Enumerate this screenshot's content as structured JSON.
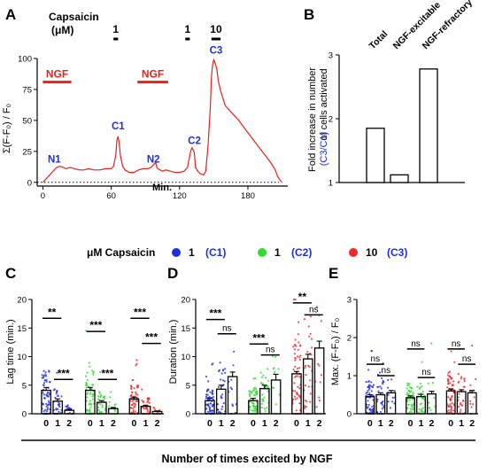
{
  "colors": {
    "trace": "#e8211c",
    "blue": "#1f2ee0",
    "green": "#2fdc2f",
    "red": "#ec2a2a",
    "black": "#000000"
  },
  "chart_data": [
    {
      "panel": "A",
      "type": "line",
      "ylabel": "Σ(F-F₀) / F₀",
      "xlabel": "Min.",
      "xlim": [
        -5,
        215
      ],
      "ylim": [
        -3,
        100
      ],
      "xticks": [
        0,
        60,
        120,
        180
      ],
      "yticks": [
        0,
        25,
        50,
        75,
        100
      ],
      "stim_title_1": "Capsaicin",
      "stim_title_2": "(μM)",
      "stim_pulses": [
        {
          "label": "1",
          "x0": 62,
          "x1": 66
        },
        {
          "label": "1",
          "x0": 125,
          "x1": 129
        },
        {
          "label": "10",
          "x0": 148,
          "x1": 156
        }
      ],
      "ngf_bars": [
        {
          "label": "NGF",
          "x0": 0,
          "x1": 25
        },
        {
          "label": "NGF",
          "x0": 83,
          "x1": 110
        }
      ],
      "annotations": [
        {
          "label": "N1",
          "x": 10,
          "y": 13
        },
        {
          "label": "C1",
          "x": 66,
          "y": 40
        },
        {
          "label": "N2",
          "x": 97,
          "y": 13
        },
        {
          "label": "C2",
          "x": 133,
          "y": 28
        },
        {
          "label": "C3",
          "x": 152,
          "y": 101
        }
      ],
      "series": [
        {
          "x": [
            0,
            2,
            5,
            8,
            10,
            12,
            15,
            18,
            20,
            24,
            28,
            32,
            36,
            40,
            45,
            50,
            55,
            60,
            62,
            64,
            65,
            66,
            67,
            68,
            70,
            72,
            74,
            76,
            78,
            80,
            82,
            84,
            88,
            92,
            95,
            97,
            99,
            100,
            101,
            103,
            105,
            108,
            112,
            116,
            120,
            124,
            127,
            129,
            130,
            131,
            133,
            134,
            136,
            138,
            141,
            143,
            145,
            147,
            148,
            149,
            150,
            151,
            152,
            153,
            154,
            156,
            158,
            160,
            164,
            168,
            172,
            176,
            180,
            185,
            190,
            195,
            200,
            204,
            206,
            208,
            210
          ],
          "y": [
            0,
            2,
            5,
            8,
            10,
            12,
            13,
            12,
            11,
            12,
            11,
            10,
            10,
            11,
            10,
            10,
            11,
            11,
            13,
            22,
            34,
            37,
            32,
            22,
            13,
            10,
            9,
            8,
            8,
            8,
            9,
            10,
            11,
            11,
            12,
            14,
            16,
            12,
            11,
            10,
            9,
            10,
            9,
            8,
            8,
            9,
            12,
            22,
            26,
            28,
            24,
            12,
            9,
            7,
            6,
            9,
            30,
            60,
            85,
            95,
            99,
            97,
            94,
            90,
            82,
            74,
            68,
            62,
            58,
            54,
            50,
            45,
            40,
            34,
            28,
            22,
            16,
            10,
            5,
            2,
            0
          ]
        }
      ]
    },
    {
      "panel": "B",
      "type": "bar",
      "ylabel_1": "Fold increase in number",
      "ylabel_2": "of cells activated",
      "ylabel_3": "(C3/C1)",
      "categories": [
        "Total",
        "NGF-excitable",
        "NGF-refractory"
      ],
      "values": [
        1.85,
        1.12,
        2.78
      ],
      "ylim": [
        1,
        3
      ],
      "yticks": [
        1,
        2,
        3
      ]
    },
    {
      "legend_title": "μM Capsaicin",
      "legend": [
        {
          "dose": "1",
          "name": "(C1)",
          "color": "#1f2ee0"
        },
        {
          "dose": "1",
          "name": "(C2)",
          "color": "#2fdc2f"
        },
        {
          "dose": "10",
          "name": "(C3)",
          "color": "#ec2a2a"
        }
      ],
      "shared_xlabel": "Number of times excited by NGF"
    },
    {
      "panel": "C",
      "type": "bar",
      "ylabel": "Lag time (min.)",
      "ylim": [
        0,
        20
      ],
      "yticks": [
        0,
        5,
        10,
        15,
        20
      ],
      "tick_labels": [
        "0",
        "1",
        "2"
      ],
      "groups": [
        {
          "color": "#1f2ee0",
          "values": [
            4.1,
            2.2,
            0.6
          ],
          "errors": [
            0.5,
            0.4,
            0.2
          ]
        },
        {
          "color": "#2fdc2f",
          "values": [
            4.1,
            2.0,
            0.9
          ],
          "errors": [
            0.5,
            0.3,
            0.2
          ]
        },
        {
          "color": "#ec2a2a",
          "values": [
            2.6,
            1.3,
            0.4
          ],
          "errors": [
            0.3,
            0.2,
            0.1
          ]
        }
      ],
      "sig": [
        {
          "label": "**",
          "g": 0,
          "a": 0,
          "b": 1,
          "y": 16.7
        },
        {
          "label": "***",
          "g": 0,
          "a": 1,
          "b": 2,
          "y": 6.0
        },
        {
          "label": "***",
          "g": 1,
          "a": 0,
          "b": 1,
          "y": 14.4
        },
        {
          "label": "***",
          "g": 1,
          "a": 1,
          "b": 2,
          "y": 6.0
        },
        {
          "label": "***",
          "g": 2,
          "a": 0,
          "b": 1,
          "y": 16.7
        },
        {
          "label": "***",
          "g": 2,
          "a": 1,
          "b": 2,
          "y": 12.3
        }
      ]
    },
    {
      "panel": "D",
      "type": "bar",
      "ylabel": "Duration (min.)",
      "ylim": [
        0,
        20
      ],
      "yticks": [
        0,
        5,
        10,
        15,
        20
      ],
      "tick_labels": [
        "0",
        "1",
        "2"
      ],
      "groups": [
        {
          "color": "#1f2ee0",
          "values": [
            2.3,
            4.3,
            6.5
          ],
          "errors": [
            0.4,
            0.7,
            0.8
          ]
        },
        {
          "color": "#2fdc2f",
          "values": [
            2.3,
            4.4,
            5.9
          ],
          "errors": [
            0.4,
            0.6,
            1.0
          ]
        },
        {
          "color": "#ec2a2a",
          "values": [
            7.0,
            9.6,
            11.5
          ],
          "errors": [
            0.4,
            0.8,
            1.2
          ]
        }
      ],
      "sig": [
        {
          "label": "***",
          "g": 0,
          "a": 0,
          "b": 1,
          "y": 16.5
        },
        {
          "label": "ns",
          "g": 0,
          "a": 1,
          "b": 2,
          "y": 14.0
        },
        {
          "label": "***",
          "g": 1,
          "a": 0,
          "b": 1,
          "y": 12.2
        },
        {
          "label": "ns",
          "g": 1,
          "a": 1,
          "b": 2,
          "y": 10.3
        },
        {
          "label": "**",
          "g": 2,
          "a": 0,
          "b": 1,
          "y": 19.4
        },
        {
          "label": "ns",
          "g": 2,
          "a": 1,
          "b": 2,
          "y": 17.3
        }
      ]
    },
    {
      "panel": "E",
      "type": "bar",
      "ylabel": "Max. (F-F₀) / F₀",
      "ylim": [
        0,
        3
      ],
      "yticks": [
        0,
        1,
        2,
        3
      ],
      "tick_labels": [
        "0",
        "1",
        "2"
      ],
      "groups": [
        {
          "color": "#1f2ee0",
          "values": [
            0.45,
            0.5,
            0.55
          ],
          "errors": [
            0.05,
            0.05,
            0.06
          ]
        },
        {
          "color": "#2fdc2f",
          "values": [
            0.42,
            0.45,
            0.52
          ],
          "errors": [
            0.05,
            0.06,
            0.07
          ]
        },
        {
          "color": "#ec2a2a",
          "values": [
            0.6,
            0.58,
            0.55
          ],
          "errors": [
            0.05,
            0.05,
            0.06
          ]
        }
      ],
      "sig": [
        {
          "label": "ns",
          "g": 0,
          "a": 0,
          "b": 1,
          "y": 1.3
        },
        {
          "label": "ns",
          "g": 0,
          "a": 1,
          "b": 2,
          "y": 1.0
        },
        {
          "label": "ns",
          "g": 1,
          "a": 0,
          "b": 1,
          "y": 1.7
        },
        {
          "label": "ns",
          "g": 1,
          "a": 1,
          "b": 2,
          "y": 0.95
        },
        {
          "label": "ns",
          "g": 2,
          "a": 0,
          "b": 1,
          "y": 1.7
        },
        {
          "label": "ns",
          "g": 2,
          "a": 1,
          "b": 2,
          "y": 1.3
        }
      ]
    }
  ],
  "panel_labels": {
    "a": "A",
    "b": "B",
    "c": "C",
    "d": "D",
    "e": "E"
  }
}
